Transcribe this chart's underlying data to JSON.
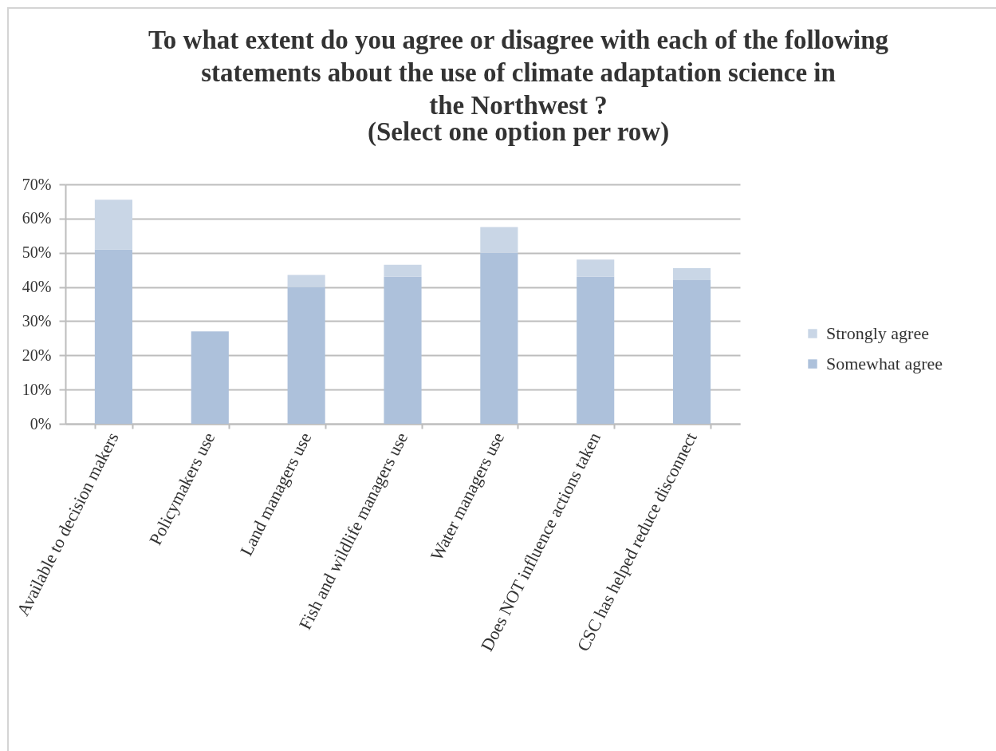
{
  "chart_data": {
    "type": "bar",
    "title": "To what extent do you agree or disagree with each of the following\nstatements about the use of climate adaptation science in\nthe Northwest ?",
    "subtitle": "(Select one option per row)",
    "categories": [
      "Available to decision makers",
      "Policymakers use",
      "Land managers use",
      "Fish and wildlife managers use",
      "Water managers use",
      "Does NOT influence actions taken",
      "CSC has helped reduce disconnect"
    ],
    "series": [
      {
        "name": "Somewhat agree",
        "color": "#adc1db",
        "values": [
          51,
          27,
          40,
          43,
          50,
          43,
          42
        ]
      },
      {
        "name": "Strongly agree",
        "color": "#c9d6e6",
        "values": [
          14.5,
          null,
          3.5,
          3.5,
          7.5,
          5,
          3.5
        ]
      }
    ],
    "stacked": true,
    "ylim": [
      0,
      70
    ],
    "yticks": [
      {
        "value": 0,
        "label": "0%"
      },
      {
        "value": 10,
        "label": "10%"
      },
      {
        "value": 20,
        "label": "20%"
      },
      {
        "value": 30,
        "label": "30%"
      },
      {
        "value": 40,
        "label": "40%"
      },
      {
        "value": 50,
        "label": "50%"
      },
      {
        "value": 60,
        "label": "60%"
      },
      {
        "value": 70,
        "label": "70%"
      }
    ],
    "grid": "y",
    "legend": "right"
  }
}
